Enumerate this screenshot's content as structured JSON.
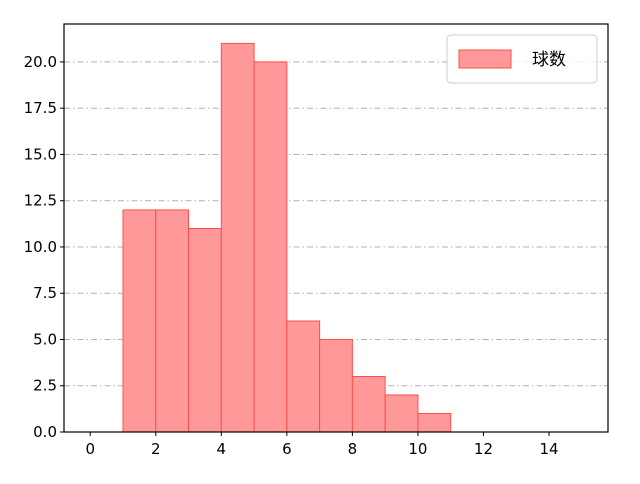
{
  "chart_data": {
    "type": "bar",
    "histogram": true,
    "bin_edges": [
      1,
      2,
      3,
      4,
      5,
      6,
      7,
      8,
      9,
      10,
      11
    ],
    "values": [
      12,
      12,
      11,
      21,
      20,
      6,
      5,
      3,
      2,
      1
    ],
    "series": [
      {
        "name": "球数",
        "color": "#ff9999",
        "edge_color": "#ff4d4d"
      }
    ],
    "xlim": [
      -0.8,
      15.8
    ],
    "ylim": [
      0,
      22.05
    ],
    "xticks": [
      0,
      2,
      4,
      6,
      8,
      10,
      12,
      14
    ],
    "xtick_labels": [
      "0",
      "2",
      "4",
      "6",
      "8",
      "10",
      "12",
      "14"
    ],
    "yticks": [
      0,
      2.5,
      5,
      7.5,
      10,
      12.5,
      15,
      17.5,
      20
    ],
    "ytick_labels": [
      "0.0",
      "2.5",
      "5.0",
      "7.5",
      "10.0",
      "12.5",
      "15.0",
      "17.5",
      "20.0"
    ],
    "grid": "y-dashdot",
    "legend": "top-right",
    "title": "",
    "xlabel": "",
    "ylabel": ""
  }
}
